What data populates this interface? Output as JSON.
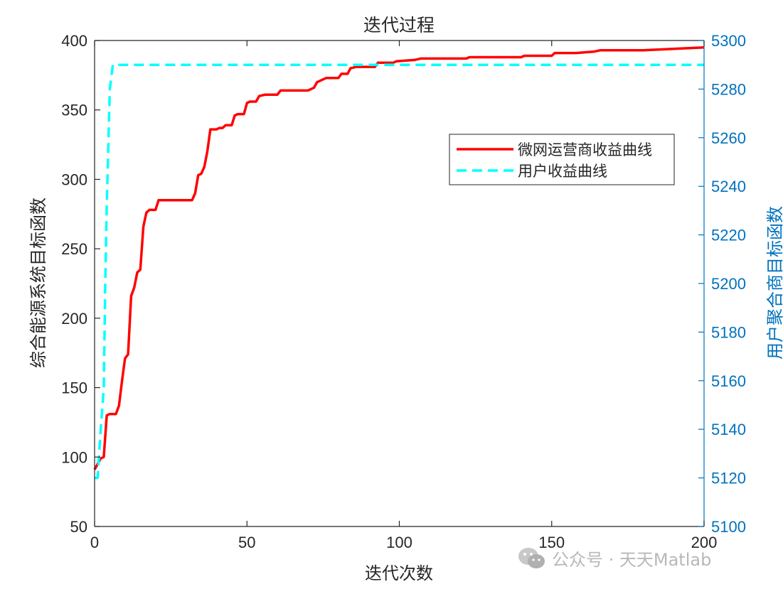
{
  "watermark": {
    "text": "公众号 · 天天Matlab",
    "icon": "wechat-icon"
  },
  "chart_data": {
    "type": "line",
    "title": "迭代过程",
    "xlabel": "迭代次数",
    "ylabel": "综合能源系统目标函数",
    "ylabel_right": "用户聚合商目标函数",
    "xlim": [
      0,
      200
    ],
    "ylim": [
      50,
      400
    ],
    "ylim_right": [
      5100,
      5300
    ],
    "xticks": [
      0,
      50,
      100,
      150,
      200
    ],
    "yticks": [
      50,
      100,
      150,
      200,
      250,
      300,
      350,
      400
    ],
    "yticks_right": [
      5100,
      5120,
      5140,
      5160,
      5180,
      5200,
      5220,
      5240,
      5260,
      5280,
      5300
    ],
    "grid": false,
    "legend_position": "upper-right",
    "series": [
      {
        "name": "微网运营商收益曲线",
        "axis": "left",
        "color": "#ff0000",
        "style": "solid",
        "points": [
          [
            0,
            91
          ],
          [
            1,
            95
          ],
          [
            2,
            99
          ],
          [
            3,
            100
          ],
          [
            4,
            130
          ],
          [
            5,
            131
          ],
          [
            7,
            131
          ],
          [
            8,
            137
          ],
          [
            9,
            155
          ],
          [
            10,
            171
          ],
          [
            11,
            174
          ],
          [
            12,
            216
          ],
          [
            13,
            222
          ],
          [
            14,
            233
          ],
          [
            15,
            235
          ],
          [
            16,
            266
          ],
          [
            17,
            276
          ],
          [
            18,
            278
          ],
          [
            20,
            278
          ],
          [
            21,
            285
          ],
          [
            25,
            285
          ],
          [
            32,
            285
          ],
          [
            33,
            290
          ],
          [
            34,
            303
          ],
          [
            35,
            304
          ],
          [
            36,
            309
          ],
          [
            37,
            320
          ],
          [
            38,
            336
          ],
          [
            40,
            336
          ],
          [
            41,
            337
          ],
          [
            42,
            337
          ],
          [
            43,
            339
          ],
          [
            45,
            339
          ],
          [
            46,
            346
          ],
          [
            47,
            347
          ],
          [
            49,
            347
          ],
          [
            50,
            355
          ],
          [
            51,
            356
          ],
          [
            53,
            356
          ],
          [
            54,
            360
          ],
          [
            56,
            361
          ],
          [
            60,
            361
          ],
          [
            61,
            364
          ],
          [
            70,
            364
          ],
          [
            71,
            365
          ],
          [
            72,
            366
          ],
          [
            73,
            370
          ],
          [
            74,
            371
          ],
          [
            75,
            372
          ],
          [
            76,
            373
          ],
          [
            80,
            373
          ],
          [
            81,
            376
          ],
          [
            83,
            376
          ],
          [
            84,
            380
          ],
          [
            86,
            381
          ],
          [
            92,
            381
          ],
          [
            93,
            384
          ],
          [
            98,
            384
          ],
          [
            99,
            385
          ],
          [
            105,
            386
          ],
          [
            107,
            387
          ],
          [
            122,
            387
          ],
          [
            123,
            388
          ],
          [
            140,
            388
          ],
          [
            141,
            389
          ],
          [
            150,
            389
          ],
          [
            151,
            391
          ],
          [
            158,
            391
          ],
          [
            164,
            392
          ],
          [
            166,
            393
          ],
          [
            180,
            393
          ],
          [
            190,
            394
          ],
          [
            200,
            395
          ]
        ]
      },
      {
        "name": "用户收益曲线",
        "axis": "right",
        "color": "#00ffff",
        "style": "dashed",
        "points": [
          [
            0,
            5120
          ],
          [
            1,
            5120
          ],
          [
            2,
            5140
          ],
          [
            3,
            5157
          ],
          [
            3.5,
            5200
          ],
          [
            4,
            5232
          ],
          [
            5,
            5280
          ],
          [
            6,
            5290
          ],
          [
            200,
            5290
          ]
        ]
      }
    ]
  }
}
